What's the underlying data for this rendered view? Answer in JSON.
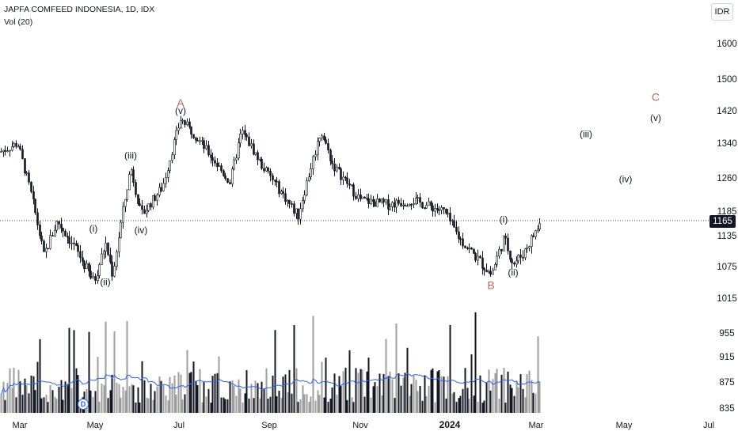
{
  "header": {
    "title": "JAPFA COMFEED INDONESIA, 1D, IDX",
    "volume_label": "Vol (20)"
  },
  "currency": "IDR",
  "last_price": "1165",
  "dividend_badge": "D",
  "colors": {
    "candle": "#131722",
    "volume": "#131722",
    "volume_ma": "#2962ff",
    "wave_abc": "#c0675b",
    "wave_minor": "#131722",
    "grid_text": "#131722",
    "price_line": "#555555"
  },
  "chart_data": {
    "type": "candlestick",
    "title": "JAPFA COMFEED INDONESIA, 1D, IDX",
    "x_axis": {
      "ticks": [
        "Mar",
        "May",
        "Jul",
        "Sep",
        "Nov",
        "2024",
        "Mar",
        "May",
        "Jul"
      ]
    },
    "y_axis": {
      "ticks": [
        1600,
        1500,
        1420,
        1340,
        1260,
        1185,
        1135,
        1075,
        1015,
        955,
        915,
        875,
        835
      ],
      "unit": "IDR"
    },
    "last_price": 1165,
    "price_path": [
      {
        "t": "Mar",
        "p": 1320
      },
      {
        "t": "early Mar",
        "p": 1340
      },
      {
        "t": "mid Mar",
        "p": 1230
      },
      {
        "t": "late Mar",
        "p": 1095
      },
      {
        "t": "early Apr",
        "p": 1165
      },
      {
        "t": "mid Apr",
        "p": 1110
      },
      {
        "t": "late Apr",
        "p": 1045
      },
      {
        "t": "early May",
        "p": 1120
      },
      {
        "t": "mid May",
        "p": 1060
      },
      {
        "t": "late May",
        "p": 1285
      },
      {
        "t": "early Jun",
        "p": 1175
      },
      {
        "t": "mid Jun",
        "p": 1240
      },
      {
        "t": "Jul",
        "p": 1400
      },
      {
        "t": "mid Jul",
        "p": 1350
      },
      {
        "t": "early Aug",
        "p": 1250
      },
      {
        "t": "mid Aug",
        "p": 1370
      },
      {
        "t": "late Aug",
        "p": 1290
      },
      {
        "t": "Sep",
        "p": 1240
      },
      {
        "t": "late Sep",
        "p": 1175
      },
      {
        "t": "early Oct",
        "p": 1370
      },
      {
        "t": "mid Oct",
        "p": 1290
      },
      {
        "t": "Nov",
        "p": 1210
      },
      {
        "t": "late Nov",
        "p": 1200
      },
      {
        "t": "Dec",
        "p": 1210
      },
      {
        "t": "late Dec",
        "p": 1185
      },
      {
        "t": "2024",
        "p": 1130
      },
      {
        "t": "mid Jan",
        "p": 1095
      },
      {
        "t": "late Jan",
        "p": 1060
      },
      {
        "t": "early Feb",
        "p": 1130
      },
      {
        "t": "mid Feb",
        "p": 1080
      },
      {
        "t": "late Feb",
        "p": 1100
      },
      {
        "t": "Mar",
        "p": 1165
      }
    ],
    "wave_labels": [
      {
        "text": "A",
        "at": "Jul",
        "price": 1430,
        "kind": "major"
      },
      {
        "text": "B",
        "at": "late Jan",
        "price": 1032,
        "kind": "major"
      },
      {
        "text": "C",
        "at": "Jun",
        "price": 1445,
        "kind": "major"
      },
      {
        "text": "(i)",
        "at": "late Apr",
        "price": 1143,
        "kind": "minor"
      },
      {
        "text": "(ii)",
        "at": "early May",
        "price": 1040,
        "kind": "minor"
      },
      {
        "text": "(iii)",
        "at": "late May",
        "price": 1305,
        "kind": "minor"
      },
      {
        "text": "(iv)",
        "at": "early Jun",
        "price": 1140,
        "kind": "minor"
      },
      {
        "text": "(v)",
        "at": "Jul",
        "price": 1412,
        "kind": "minor"
      },
      {
        "text": "(i)",
        "at": "early Feb",
        "price": 1162,
        "kind": "minor"
      },
      {
        "text": "(ii)",
        "at": "mid Feb",
        "price": 1058,
        "kind": "minor"
      },
      {
        "text": "(iii)",
        "at": "Apr",
        "price": 1355,
        "kind": "minor"
      },
      {
        "text": "(iv)",
        "at": "May",
        "price": 1250,
        "kind": "minor"
      },
      {
        "text": "(v)",
        "at": "Jun",
        "price": 1395,
        "kind": "minor"
      }
    ],
    "volume_ma_label": "Vol (20)"
  }
}
